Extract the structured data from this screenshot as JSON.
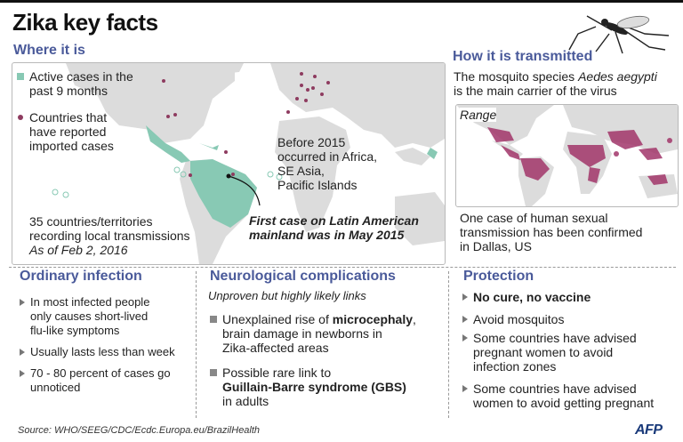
{
  "title": "Zika key facts",
  "where": {
    "heading": "Where it is",
    "legend_active_1": "Active cases in the",
    "legend_active_2": "past 9 months",
    "legend_imported_1": "Countries that",
    "legend_imported_2": "have reported",
    "legend_imported_3": "imported cases",
    "before_1": "Before 2015",
    "before_2": "occurred in Africa,",
    "before_3": "SE Asia,",
    "before_4": "Pacific Islands",
    "countries_1": "35 countries/territories",
    "countries_2": "recording local transmissions",
    "as_of": "As of Feb 2, 2016",
    "first_case_1": "First case on Latin American",
    "first_case_2": "mainland was in May 2015"
  },
  "how": {
    "heading": "How it is transmitted",
    "line1_a": "The mosquito species ",
    "line1_b": "Aedes aegypti",
    "line2": "is the main carrier of the virus",
    "range_label": "Range",
    "sexual_1": "One case of human sexual",
    "sexual_2": "transmission has been confirmed",
    "sexual_3": "in Dallas, US"
  },
  "ordinary": {
    "heading": "Ordinary infection",
    "items": [
      [
        "In most infected people",
        "only causes short-lived",
        "flu-like symptoms"
      ],
      [
        "Usually lasts less than week"
      ],
      [
        "70 - 80 percent of cases go",
        "unnoticed"
      ]
    ]
  },
  "neuro": {
    "heading": "Neurological complications",
    "subtitle": "Unproven but highly likely links",
    "item1_a": "Unexplained rise of ",
    "item1_b": "microcephaly",
    "item1_c": ",",
    "item1_2": "brain damage in newborns in",
    "item1_3": "Zika-affected areas",
    "item2_1": "Possible rare link to",
    "item2_2": "Guillain-Barre syndrome (GBS)",
    "item2_3": "in adults"
  },
  "protection": {
    "heading": "Protection",
    "item1": "No cure, no vaccine",
    "item2": "Avoid mosquitos",
    "item3": [
      "Some countries have advised",
      "pregnant women to avoid",
      "infection zones"
    ],
    "item4": [
      "Some countries have advised",
      "women to avoid getting pregnant"
    ]
  },
  "source": "Source: WHO/SEEG/CDC/Ecdc.Europa.eu/BrazilHealth",
  "logo": "AFP",
  "colors": {
    "heading": "#4a5a9a",
    "active": "#88c9b4",
    "imported": "#8e3b5f",
    "range": "#a2366a"
  }
}
